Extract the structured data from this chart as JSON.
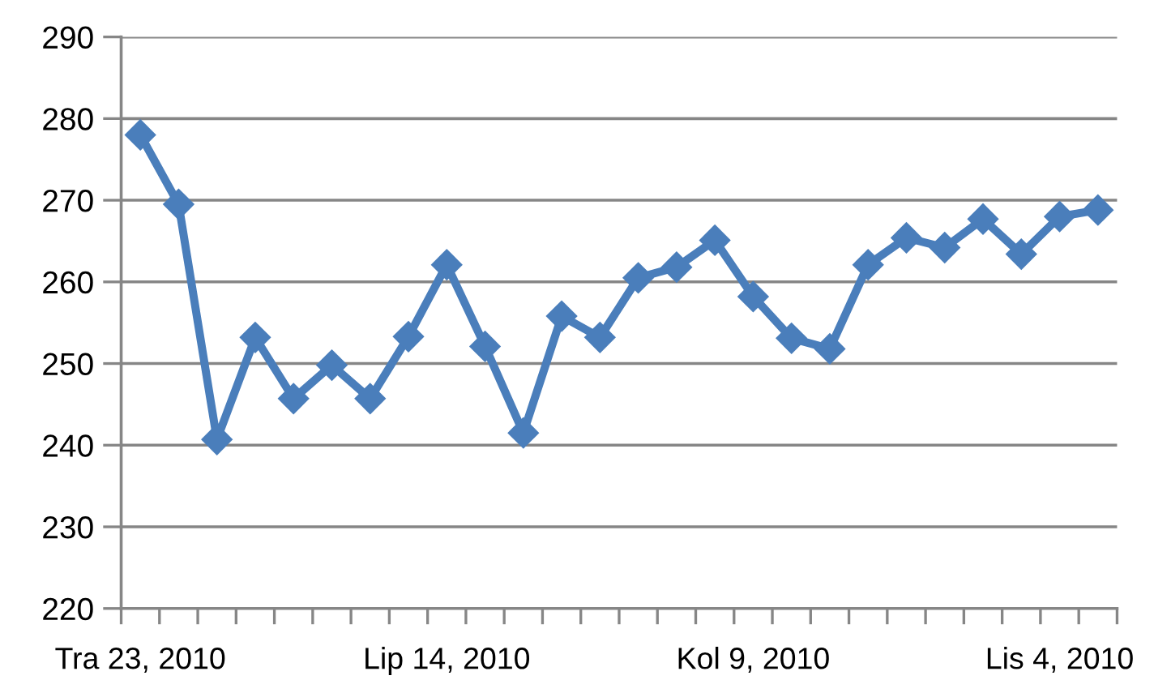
{
  "chart_data": {
    "type": "line",
    "categories": [
      "Tra 23, 2010",
      null,
      null,
      null,
      null,
      null,
      null,
      null,
      "Lip 14, 2010",
      null,
      null,
      null,
      null,
      null,
      null,
      null,
      "Kol 9, 2010",
      null,
      null,
      null,
      null,
      null,
      null,
      null,
      "Lis 4, 2010",
      null
    ],
    "series": [
      {
        "color": "#4a7ebb",
        "values": [
          278.0,
          269.5,
          240.7,
          253.2,
          245.7,
          249.8,
          245.7,
          253.3,
          262.1,
          252.1,
          241.5,
          255.8,
          253.2,
          260.5,
          261.8,
          265.1,
          258.2,
          253.1,
          251.8,
          262.1,
          265.4,
          264.2,
          267.7,
          263.4,
          268.0,
          268.8
        ]
      }
    ],
    "ylim": [
      220,
      290
    ],
    "yticks": [
      220,
      230,
      240,
      250,
      260,
      270,
      280,
      290
    ],
    "grid": "y",
    "marker": "diamond",
    "line_style": "solid"
  }
}
